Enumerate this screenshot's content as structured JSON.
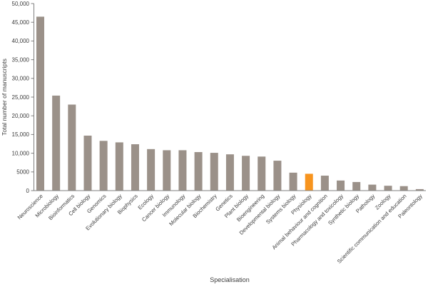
{
  "chart_data": {
    "type": "bar",
    "title": "",
    "xlabel": "Specialisation",
    "ylabel": "Total number of manuscripts",
    "ylim": [
      0,
      50000
    ],
    "ytick_interval": 5000,
    "ytick_labels": [
      "0",
      "5000",
      "10,000",
      "15,000",
      "20,000",
      "25,000",
      "30,000",
      "35,000",
      "40,000",
      "45,000",
      "50,000"
    ],
    "grid": "off",
    "legend": "none",
    "categories": [
      "Neuroscience",
      "Microbiology",
      "Bioinformatics",
      "Cell biology",
      "Genomics",
      "Evolutionary biology",
      "Biophysics",
      "Ecology",
      "Cancer biology",
      "Immunology",
      "Molecular biology",
      "Biochemistry",
      "Genetics",
      "Plant biology",
      "Bioengineering",
      "Developmental biology",
      "Systems biology",
      "Physiology",
      "Animal behaviour and cognition",
      "Pharmacology and toxicology",
      "Synthetic biology",
      "Pathology",
      "Zoology",
      "Scientific communication and education",
      "Paleontology"
    ],
    "values": [
      46500,
      25400,
      23000,
      14700,
      13300,
      12900,
      12400,
      11100,
      10800,
      10800,
      10300,
      10100,
      9700,
      9300,
      9100,
      8000,
      4800,
      4500,
      4000,
      2700,
      2300,
      1600,
      1300,
      1200,
      400
    ],
    "highlight_category": "Physiology",
    "highlight_index": 17,
    "colors": {
      "bar": "#9b9189",
      "highlight": "#f7941e",
      "axis": "#7f7f7f",
      "text": "#3d3d3d"
    }
  }
}
